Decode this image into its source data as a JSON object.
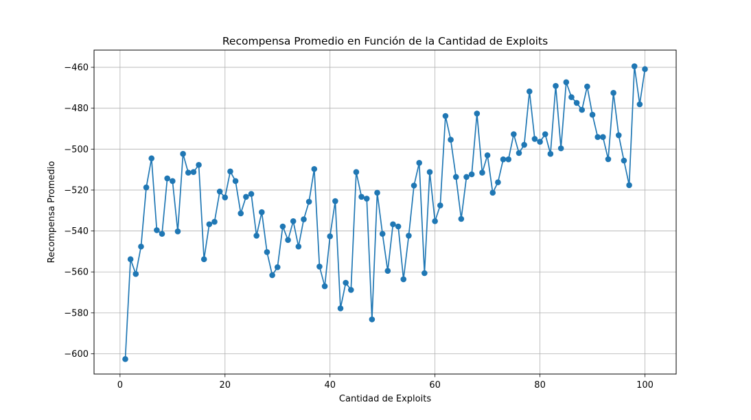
{
  "chart_data": {
    "type": "line",
    "title": "Recompensa Promedio en Función de la Cantidad de Exploits",
    "xlabel": "Cantidad de Exploits",
    "ylabel": "Recompensa Promedio",
    "xlim": [
      -4.95,
      105.95
    ],
    "ylim": [
      -609.9,
      -451.6
    ],
    "x_ticks": [
      0,
      20,
      40,
      60,
      80,
      100
    ],
    "x_tick_labels": [
      "0",
      "20",
      "40",
      "60",
      "80",
      "100"
    ],
    "y_ticks": [
      -600,
      -580,
      -560,
      -540,
      -520,
      -500,
      -480,
      -460
    ],
    "y_tick_labels": [
      "−600",
      "−580",
      "−560",
      "−540",
      "−520",
      "−500",
      "−480",
      "−460"
    ],
    "grid": true,
    "series": [
      {
        "name": "Recompensa Promedio",
        "color": "#1f77b4",
        "marker": "circle",
        "x": [
          1,
          2,
          3,
          4,
          5,
          6,
          7,
          8,
          9,
          10,
          11,
          12,
          13,
          14,
          15,
          16,
          17,
          18,
          19,
          20,
          21,
          22,
          23,
          24,
          25,
          26,
          27,
          28,
          29,
          30,
          31,
          32,
          33,
          34,
          35,
          36,
          37,
          38,
          39,
          40,
          41,
          42,
          43,
          44,
          45,
          46,
          47,
          48,
          49,
          50,
          51,
          52,
          53,
          54,
          55,
          56,
          57,
          58,
          59,
          60,
          61,
          62,
          63,
          64,
          65,
          66,
          67,
          68,
          69,
          70,
          71,
          72,
          73,
          74,
          75,
          76,
          77,
          78,
          79,
          80,
          81,
          82,
          83,
          84,
          85,
          86,
          87,
          88,
          89,
          90,
          91,
          92,
          93,
          94,
          95,
          96,
          97,
          98,
          99,
          100
        ],
        "values": [
          -602.6,
          -553.8,
          -561.0,
          -547.6,
          -518.7,
          -504.5,
          -539.6,
          -541.4,
          -514.3,
          -515.6,
          -540.2,
          -502.3,
          -511.5,
          -511.2,
          -507.7,
          -553.8,
          -536.7,
          -535.5,
          -520.7,
          -523.6,
          -510.9,
          -515.6,
          -531.4,
          -523.3,
          -521.9,
          -542.3,
          -530.8,
          -550.3,
          -561.6,
          -557.7,
          -537.8,
          -544.4,
          -535.2,
          -547.6,
          -534.3,
          -525.7,
          -509.7,
          -557.4,
          -567.0,
          -542.6,
          -525.4,
          -577.8,
          -565.3,
          -568.8,
          -511.2,
          -523.3,
          -524.2,
          -583.2,
          -521.3,
          -541.4,
          -559.5,
          -536.7,
          -537.8,
          -563.6,
          -542.3,
          -517.8,
          -506.7,
          -560.6,
          -511.2,
          -535.2,
          -527.5,
          -483.8,
          -495.4,
          -513.6,
          -534.1,
          -513.6,
          -512.3,
          -482.6,
          -511.5,
          -503.0,
          -521.3,
          -516.2,
          -505.0,
          -505.0,
          -492.7,
          -501.9,
          -497.9,
          -471.8,
          -495.0,
          -496.4,
          -492.7,
          -502.3,
          -469.1,
          -499.6,
          -467.3,
          -474.6,
          -477.4,
          -480.8,
          -469.4,
          -483.2,
          -494.1,
          -494.1,
          -504.9,
          -472.5,
          -493.2,
          -505.6,
          -517.6,
          -459.5,
          -478.1,
          -460.9
        ]
      }
    ]
  }
}
